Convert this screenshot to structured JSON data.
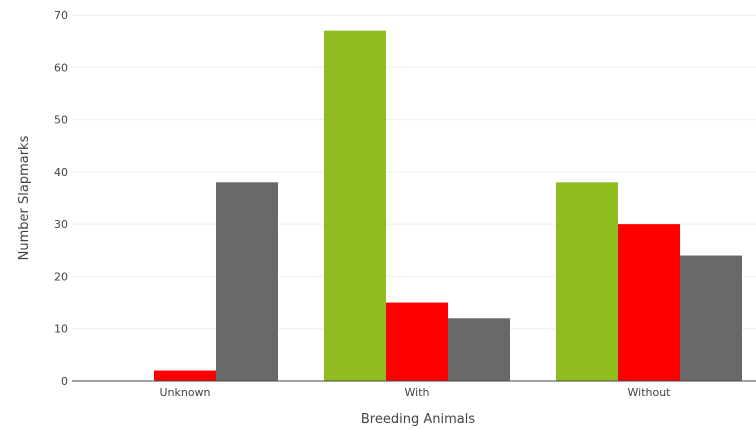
{
  "chart_data": {
    "type": "bar",
    "xlabel": "Breeding Animals",
    "ylabel": "Number Slapmarks",
    "ylim": [
      0,
      70
    ],
    "yticks": [
      0,
      10,
      20,
      30,
      40,
      50,
      60,
      70
    ],
    "grid": true,
    "categories": [
      "Unknown",
      "With",
      "Without"
    ],
    "series": [
      {
        "color": "#8fbc1f",
        "values": [
          0,
          67,
          38
        ]
      },
      {
        "color": "#ff0000",
        "values": [
          2,
          15,
          30
        ]
      },
      {
        "color": "#696969",
        "values": [
          38,
          12,
          24
        ]
      }
    ]
  }
}
